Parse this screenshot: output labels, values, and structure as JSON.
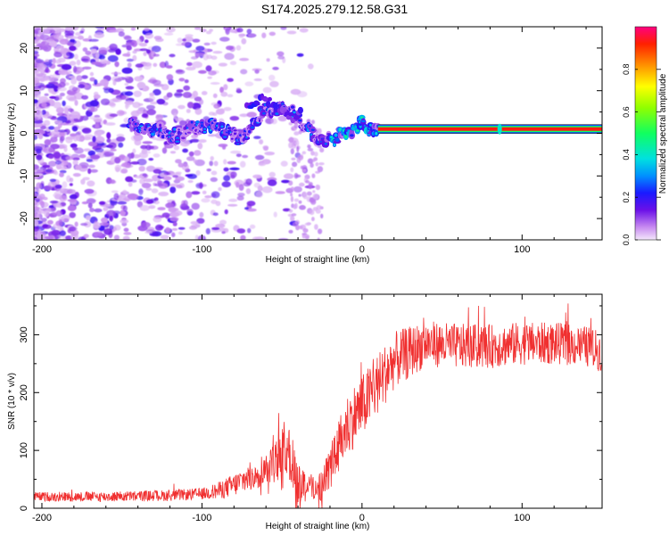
{
  "title": "S174.2025.279.12.58.G31",
  "chart_data": [
    {
      "type": "heatmap",
      "title": "S174.2025.279.12.58.G31",
      "xlabel": "Height of straight line (km)",
      "ylabel": "Frequency (Hz)",
      "xlim": [
        -205,
        150
      ],
      "ylim": [
        -25,
        25
      ],
      "xticks": [
        -200,
        -100,
        0,
        100
      ],
      "yticks": [
        -20,
        -10,
        0,
        10,
        20
      ],
      "colorbar": {
        "label": "Normalized spectral amplitude",
        "range": [
          0,
          1
        ],
        "ticks": [
          0.0,
          0.2,
          0.4,
          0.6,
          0.8
        ],
        "tick_labels": [
          "0.0",
          "0.2",
          "0.4",
          "0.6",
          "0.8"
        ]
      },
      "ridge": {
        "description_points": [
          {
            "x": -145,
            "y": 1.5
          },
          {
            "x": -130,
            "y": 1
          },
          {
            "x": -120,
            "y": -1
          },
          {
            "x": -110,
            "y": 0.5
          },
          {
            "x": -100,
            "y": 2
          },
          {
            "x": -90,
            "y": 1
          },
          {
            "x": -80,
            "y": 0
          },
          {
            "x": -75,
            "y": -2
          },
          {
            "x": -65,
            "y": 4
          },
          {
            "x": -55,
            "y": 6
          },
          {
            "x": -45,
            "y": 5
          },
          {
            "x": -35,
            "y": 2
          },
          {
            "x": -30,
            "y": -1
          },
          {
            "x": -25,
            "y": -2
          },
          {
            "x": -20,
            "y": -1.5
          },
          {
            "x": -15,
            "y": -1
          },
          {
            "x": -10,
            "y": 0
          },
          {
            "x": -5,
            "y": 1
          },
          {
            "x": 0,
            "y": 2
          },
          {
            "x": 5,
            "y": 1.5
          },
          {
            "x": 10,
            "y": 1
          },
          {
            "x": 150,
            "y": 1
          }
        ],
        "stable_band": {
          "x_start": 10,
          "x_end": 150,
          "y": 1,
          "amplitude": 0.95
        }
      }
    },
    {
      "type": "line",
      "xlabel": "Height of straight line (km)",
      "ylabel": "SNR (10 * v/v)",
      "xlim": [
        -205,
        150
      ],
      "ylim": [
        0,
        370
      ],
      "xticks": [
        -200,
        -100,
        0,
        100
      ],
      "yticks": [
        0,
        100,
        200,
        300
      ],
      "color": "#f03030",
      "envelope": [
        {
          "x": -205,
          "y": 20
        },
        {
          "x": -160,
          "y": 20
        },
        {
          "x": -120,
          "y": 22
        },
        {
          "x": -100,
          "y": 25
        },
        {
          "x": -90,
          "y": 30
        },
        {
          "x": -80,
          "y": 40
        },
        {
          "x": -70,
          "y": 55
        },
        {
          "x": -60,
          "y": 70
        },
        {
          "x": -52,
          "y": 85
        },
        {
          "x": -48,
          "y": 110
        },
        {
          "x": -44,
          "y": 80
        },
        {
          "x": -40,
          "y": 45
        },
        {
          "x": -30,
          "y": 35
        },
        {
          "x": -25,
          "y": 40
        },
        {
          "x": -20,
          "y": 70
        },
        {
          "x": -15,
          "y": 100
        },
        {
          "x": -10,
          "y": 140
        },
        {
          "x": -5,
          "y": 160
        },
        {
          "x": 0,
          "y": 175
        },
        {
          "x": 5,
          "y": 195
        },
        {
          "x": 10,
          "y": 215
        },
        {
          "x": 15,
          "y": 235
        },
        {
          "x": 20,
          "y": 255
        },
        {
          "x": 30,
          "y": 270
        },
        {
          "x": 40,
          "y": 285
        },
        {
          "x": 60,
          "y": 280
        },
        {
          "x": 80,
          "y": 280
        },
        {
          "x": 100,
          "y": 285
        },
        {
          "x": 120,
          "y": 285
        },
        {
          "x": 140,
          "y": 280
        },
        {
          "x": 150,
          "y": 270
        }
      ],
      "noise": [
        {
          "x": -205,
          "amp": 8
        },
        {
          "x": -100,
          "amp": 10
        },
        {
          "x": -60,
          "amp": 30
        },
        {
          "x": -45,
          "amp": 50
        },
        {
          "x": -30,
          "amp": 20
        },
        {
          "x": -10,
          "amp": 55
        },
        {
          "x": 10,
          "amp": 55
        },
        {
          "x": 40,
          "amp": 40
        },
        {
          "x": 150,
          "amp": 35
        }
      ]
    }
  ]
}
